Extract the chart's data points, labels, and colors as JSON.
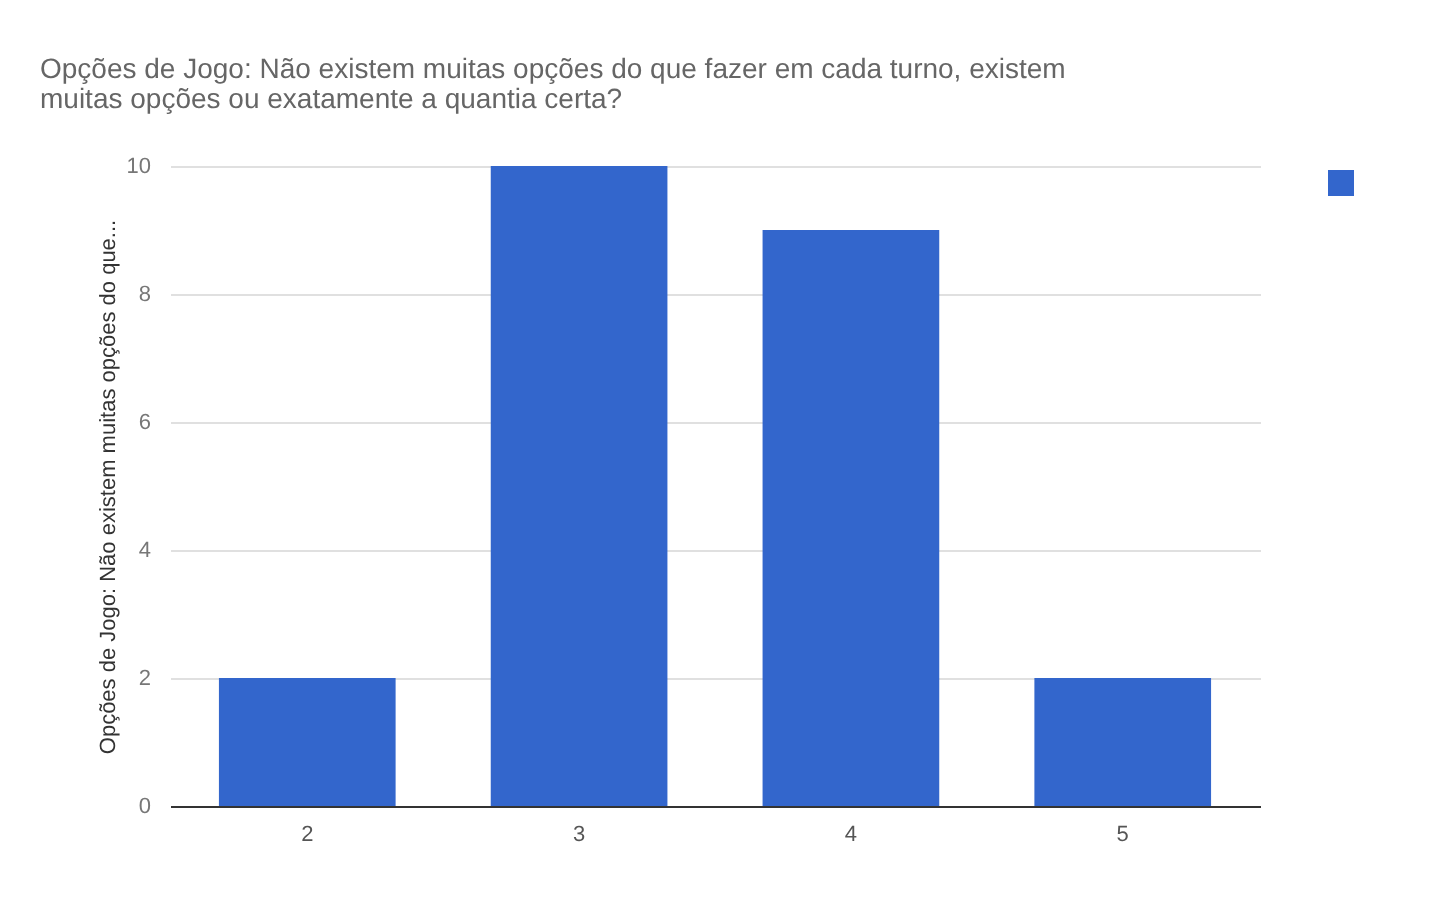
{
  "chart_data": {
    "type": "bar",
    "title": "Opções de Jogo: Não existem muitas opções do que fazer em cada turno, existem muitas opções ou exatamente a quantia certa?",
    "ylabel": "Opções de Jogo: Não existem muitas opções do que...",
    "categories": [
      "2",
      "3",
      "4",
      "5"
    ],
    "series": [
      {
        "color": "#3366cc",
        "values": [
          2,
          10,
          9,
          2
        ]
      }
    ],
    "ylim": [
      0,
      10
    ],
    "yticks": [
      0,
      2,
      4,
      6,
      8,
      10
    ],
    "grid": "y"
  }
}
